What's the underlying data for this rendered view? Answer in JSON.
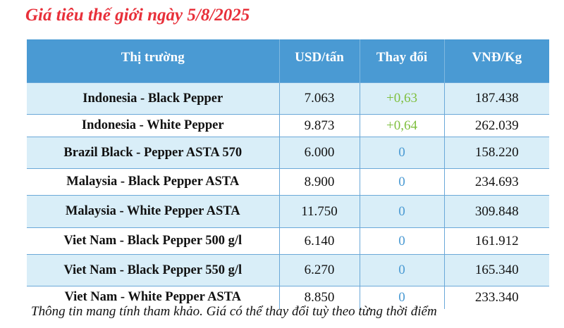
{
  "title": "Giá tiêu thế giới ngày 5/8/2025",
  "colors": {
    "title": "#e8303a",
    "header_bg": "#4a9ad3",
    "alt_row_bg": "#d9eef8",
    "increase": "#7fbf3f",
    "no_change": "#4a9ad3"
  },
  "table": {
    "headers": [
      "Thị trường",
      "USD/tấn",
      "Thay đổi",
      "VNĐ/Kg"
    ],
    "rows": [
      {
        "market": "Indonesia - Black Pepper",
        "usd_per_ton": "7.063",
        "change": "+0,63",
        "vnd_per_kg": "187.438"
      },
      {
        "market": "Indonesia - White Pepper",
        "usd_per_ton": "9.873",
        "change": "+0,64",
        "vnd_per_kg": "262.039"
      },
      {
        "market": "Brazil Black - Pepper ASTA 570",
        "usd_per_ton": "6.000",
        "change": "0",
        "vnd_per_kg": "158.220"
      },
      {
        "market": "Malaysia - Black Pepper ASTA",
        "usd_per_ton": "8.900",
        "change": "0",
        "vnd_per_kg": "234.693"
      },
      {
        "market": "Malaysia - White Pepper ASTA",
        "usd_per_ton": "11.750",
        "change": "0",
        "vnd_per_kg": "309.848"
      },
      {
        "market": "Viet Nam - Black Pepper 500 g/l",
        "usd_per_ton": "6.140",
        "change": "0",
        "vnd_per_kg": "161.912"
      },
      {
        "market": "Viet Nam - Black Pepper 550 g/l",
        "usd_per_ton": "6.270",
        "change": "0",
        "vnd_per_kg": "165.340"
      },
      {
        "market": "Viet Nam - White Pepper ASTA",
        "usd_per_ton": "8.850",
        "change": "0",
        "vnd_per_kg": "233.340"
      }
    ]
  },
  "note": "Thông tin mang tính tham khảo. Giá có thể thay đổi tuỳ theo từng thời điểm"
}
